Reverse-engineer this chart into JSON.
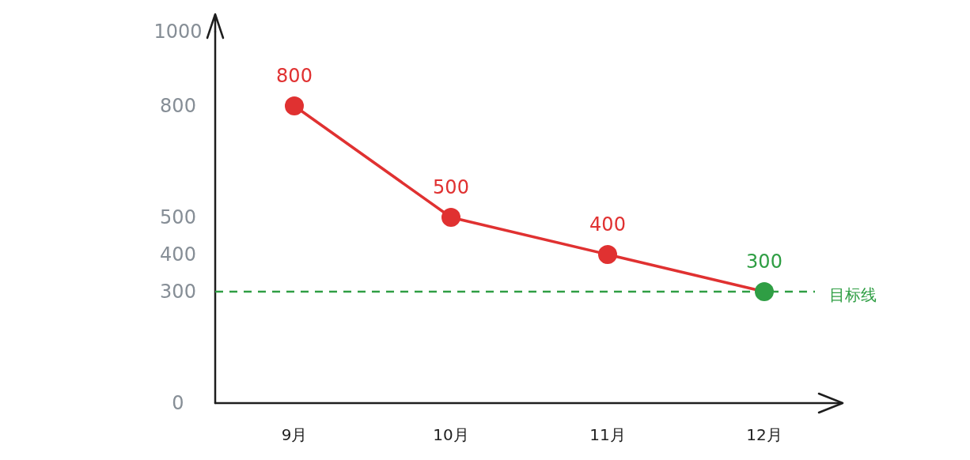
{
  "chart_data": {
    "type": "line",
    "categories": [
      "9月",
      "10月",
      "11月",
      "12月"
    ],
    "series": [
      {
        "color": "#e03131",
        "colors": [
          "#e03131",
          "#e03131",
          "#e03131",
          "#2f9e44"
        ],
        "values": [
          800,
          500,
          400,
          300
        ]
      }
    ],
    "ylim": [
      0,
      1000
    ],
    "yticks": [
      0,
      300,
      400,
      500,
      800,
      1000
    ],
    "marker": "circle",
    "data_labels": true,
    "grid": false,
    "ref_lines": [
      {
        "axis": "y",
        "value": 300,
        "label": "目标线",
        "color": "#2f9e44",
        "line_style": "dashed"
      }
    ]
  }
}
